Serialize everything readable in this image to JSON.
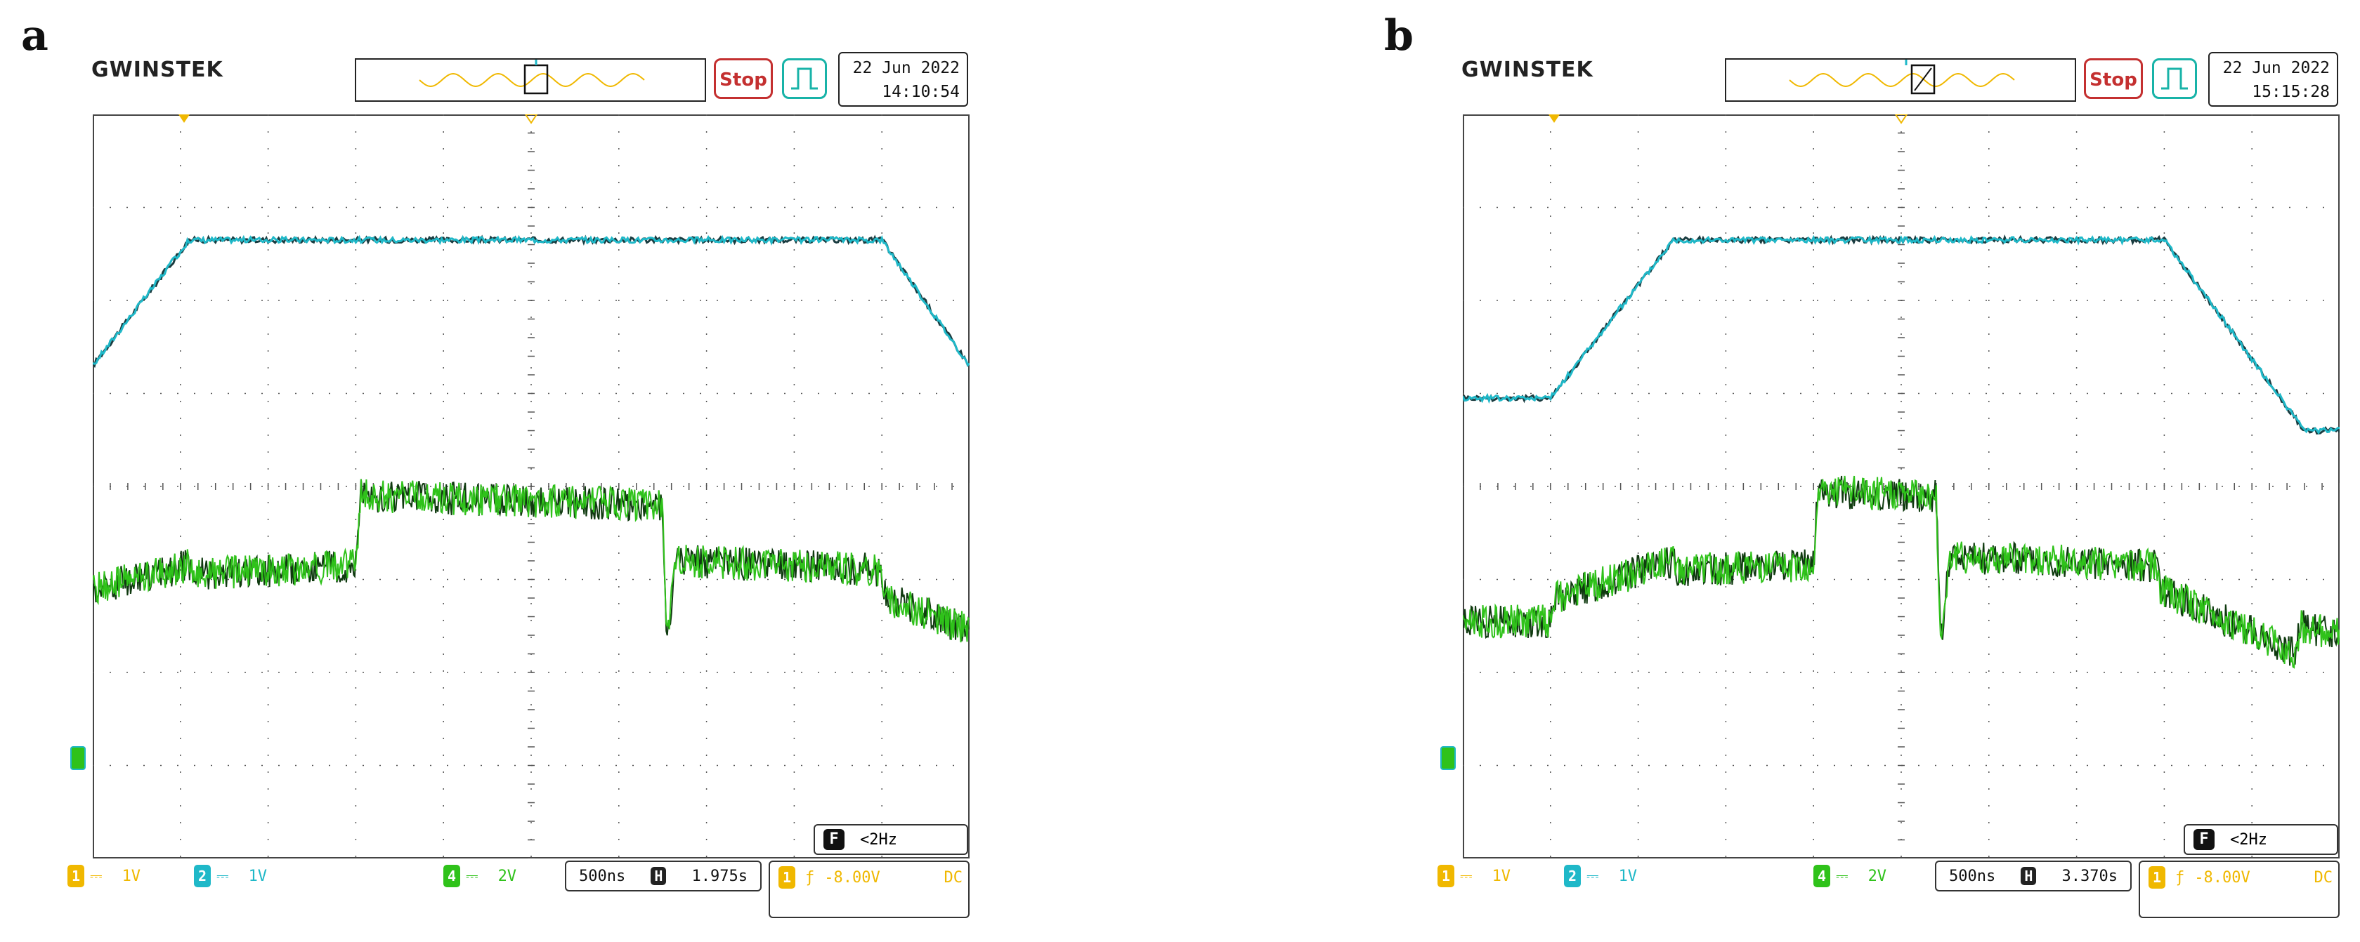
{
  "brand": "GWINSTEK",
  "colors": {
    "ch1": "#f0b800",
    "ch2": "#1fb8c8",
    "ch4": "#2fc21a",
    "grid": "#555555",
    "stop": "#c43030"
  },
  "chart_data": [
    {
      "panel": "a",
      "type": "line",
      "date": "22 Jun 2022",
      "time": "14:10:54",
      "status": "Stop",
      "channels": [
        {
          "num": "1",
          "scale": "1V"
        },
        {
          "num": "2",
          "scale": "1V"
        },
        {
          "num": "4",
          "scale": "2V"
        }
      ],
      "timebase": "500ns",
      "h_mark": "H",
      "h_position": "1.975s",
      "trigger_ch": "1",
      "trigger_level": "-8.00V",
      "coupling": "DC",
      "freq_label": "F",
      "frequency": "<2Hz",
      "xlim": [
        0,
        10
      ],
      "ylim": [
        0,
        8
      ],
      "series": [
        {
          "channel": "2",
          "x": [
            0,
            1.1,
            9.0,
            10
          ],
          "y": [
            5.3,
            6.65,
            6.65,
            5.3
          ]
        },
        {
          "channel": "4",
          "x": [
            0,
            1.1,
            1.12,
            3.0,
            3.05,
            6.5,
            6.55,
            6.65,
            9.0,
            9.05,
            10
          ],
          "y": [
            2.9,
            3.15,
            3.05,
            3.15,
            3.9,
            3.8,
            2.3,
            3.2,
            3.1,
            2.8,
            2.45
          ]
        }
      ]
    },
    {
      "panel": "b",
      "type": "line",
      "date": "22 Jun 2022",
      "time": "15:15:28",
      "status": "Stop",
      "channels": [
        {
          "num": "1",
          "scale": "1V"
        },
        {
          "num": "2",
          "scale": "1V"
        },
        {
          "num": "4",
          "scale": "2V"
        }
      ],
      "timebase": "500ns",
      "h_mark": "H",
      "h_position": "3.370s",
      "trigger_ch": "1",
      "trigger_level": "-8.00V",
      "coupling": "DC",
      "freq_label": "F",
      "frequency": "<2Hz",
      "xlim": [
        0,
        10
      ],
      "ylim": [
        0,
        8
      ],
      "series": [
        {
          "channel": "2",
          "x": [
            0,
            1.0,
            2.4,
            8.0,
            9.6,
            10
          ],
          "y": [
            4.95,
            4.95,
            6.65,
            6.65,
            4.6,
            4.6
          ]
        },
        {
          "channel": "4",
          "x": [
            0,
            1.0,
            1.05,
            2.4,
            2.45,
            4.0,
            4.05,
            5.4,
            5.45,
            5.55,
            7.9,
            7.95,
            9.5,
            9.55,
            10
          ],
          "y": [
            2.55,
            2.55,
            2.8,
            3.2,
            3.1,
            3.15,
            3.95,
            3.9,
            2.3,
            3.25,
            3.15,
            2.9,
            2.2,
            2.5,
            2.4
          ]
        }
      ]
    }
  ]
}
